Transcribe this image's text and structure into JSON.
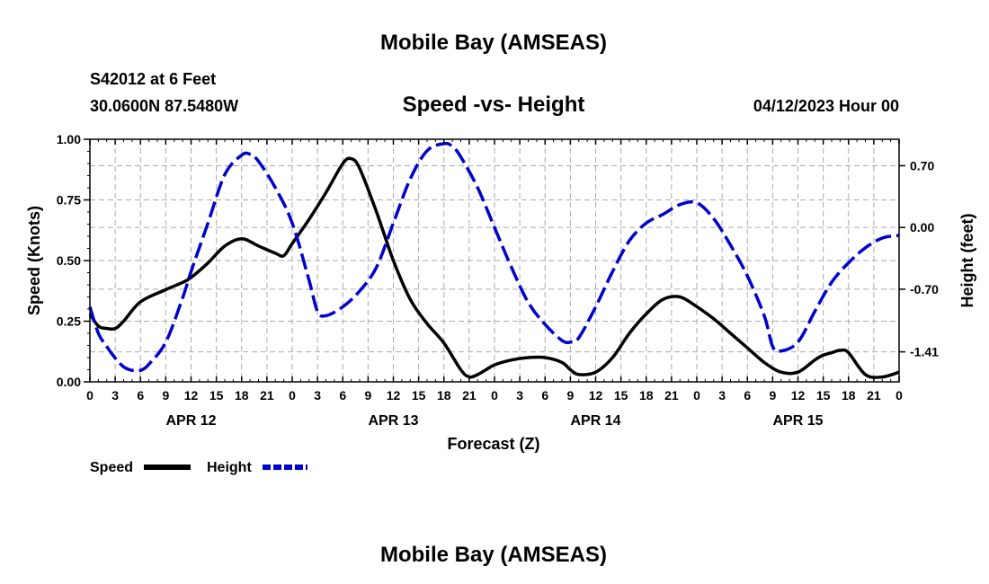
{
  "header": {
    "title": "Mobile Bay (AMSEAS)",
    "station": "S42012 at 6 Feet",
    "coords": "30.0600N  87.5480W",
    "datetime": "04/12/2023 Hour 00",
    "footer_title": "Mobile Bay (AMSEAS)"
  },
  "colors": {
    "speed": "#000000",
    "height": "#0000cc",
    "grid": "#aaaaaa"
  },
  "chart_data": {
    "type": "line",
    "title": "Speed -vs- Height",
    "xlabel": "Forecast (Z)",
    "ylabel": "Speed (Knots)",
    "y2label": "Height (feet)",
    "xlim": [
      0,
      96
    ],
    "ylim": [
      0,
      1.0
    ],
    "y2lim": [
      -1.75,
      1.0
    ],
    "x_tick_labels": [
      "0",
      "3",
      "6",
      "9",
      "12",
      "15",
      "18",
      "21",
      "0",
      "3",
      "6",
      "9",
      "12",
      "15",
      "18",
      "21",
      "0",
      "3",
      "6",
      "9",
      "12",
      "15",
      "18",
      "21",
      "0",
      "3",
      "6",
      "9",
      "12",
      "15",
      "18",
      "21",
      "0"
    ],
    "y_tick_labels": [
      "0.00",
      "0.25",
      "0.50",
      "0.75",
      "1.00"
    ],
    "y_ticks": [
      0,
      0.25,
      0.5,
      0.75,
      1.0
    ],
    "y2_tick_labels": [
      "0.70",
      "0.00",
      "-0.70",
      "-1.41"
    ],
    "y2_ticks": [
      0.7,
      0.0,
      -0.7,
      -1.41
    ],
    "day_labels": [
      {
        "text": "APR 12",
        "x": 12
      },
      {
        "text": "APR 13",
        "x": 36
      },
      {
        "text": "APR 14",
        "x": 60
      },
      {
        "text": "APR 15",
        "x": 84
      }
    ],
    "series": [
      {
        "name": "Speed",
        "axis": "left",
        "style": "solid",
        "x": [
          0,
          1,
          2,
          3,
          4,
          6,
          9,
          11,
          12,
          14,
          16,
          18,
          20,
          22,
          23,
          24,
          26,
          28,
          30,
          31,
          32,
          34,
          36,
          38,
          40,
          42,
          44,
          45,
          46,
          47,
          48,
          50,
          52,
          54,
          56,
          57,
          58,
          60,
          62,
          64,
          66,
          68,
          70,
          72,
          74,
          76,
          78,
          80,
          82,
          84,
          86,
          87,
          88,
          89,
          90,
          92,
          94,
          96
        ],
        "y": [
          0.28,
          0.23,
          0.22,
          0.22,
          0.25,
          0.33,
          0.38,
          0.41,
          0.43,
          0.49,
          0.56,
          0.59,
          0.56,
          0.53,
          0.52,
          0.57,
          0.67,
          0.78,
          0.9,
          0.92,
          0.88,
          0.7,
          0.5,
          0.34,
          0.24,
          0.16,
          0.05,
          0.02,
          0.03,
          0.05,
          0.07,
          0.09,
          0.1,
          0.1,
          0.08,
          0.05,
          0.03,
          0.04,
          0.1,
          0.2,
          0.28,
          0.34,
          0.35,
          0.31,
          0.26,
          0.2,
          0.14,
          0.08,
          0.04,
          0.04,
          0.09,
          0.11,
          0.12,
          0.13,
          0.12,
          0.03,
          0.02,
          0.04
        ]
      },
      {
        "name": "Height",
        "axis": "right",
        "style": "dashed",
        "x": [
          0,
          1,
          2,
          3,
          4,
          5,
          6,
          7,
          9,
          11,
          12,
          14,
          16,
          18,
          19,
          20,
          22,
          24,
          26,
          27,
          28,
          30,
          32,
          34,
          36,
          38,
          40,
          42,
          43,
          44,
          46,
          48,
          50,
          52,
          54,
          56,
          57,
          58,
          60,
          62,
          64,
          66,
          68,
          70,
          72,
          74,
          76,
          78,
          80,
          81,
          82,
          84,
          86,
          88,
          90,
          92,
          94,
          96
        ],
        "y": [
          -0.9,
          -1.2,
          -1.35,
          -1.48,
          -1.58,
          -1.62,
          -1.62,
          -1.55,
          -1.3,
          -0.8,
          -0.5,
          0.05,
          0.6,
          0.82,
          0.83,
          0.75,
          0.45,
          0.05,
          -0.6,
          -0.95,
          -1.0,
          -0.9,
          -0.72,
          -0.45,
          0.05,
          0.55,
          0.87,
          0.95,
          0.92,
          0.8,
          0.45,
          0.0,
          -0.45,
          -0.85,
          -1.1,
          -1.28,
          -1.3,
          -1.25,
          -0.9,
          -0.5,
          -0.15,
          0.05,
          0.15,
          0.26,
          0.28,
          0.1,
          -0.2,
          -0.55,
          -1.0,
          -1.35,
          -1.4,
          -1.3,
          -0.95,
          -0.62,
          -0.4,
          -0.23,
          -0.12,
          -0.09
        ]
      }
    ]
  }
}
